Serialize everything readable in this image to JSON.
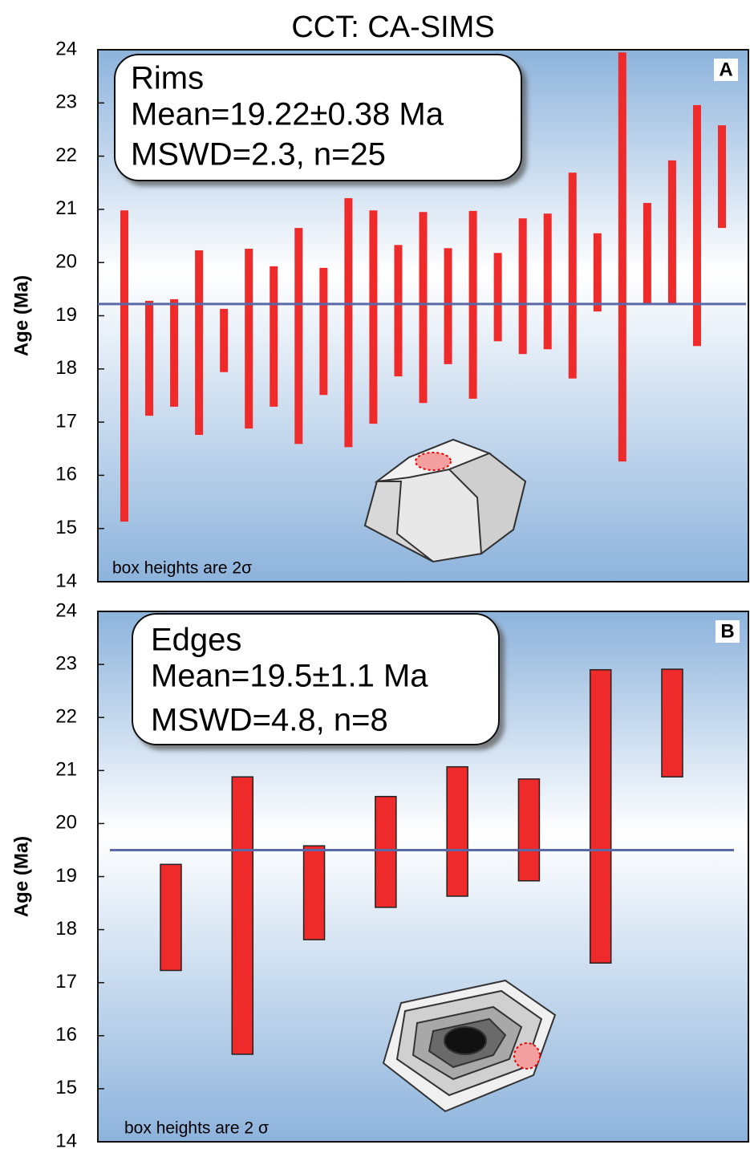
{
  "title": "CCT: CA-SIMS",
  "chart_data": [
    {
      "type": "range",
      "panel_label": "A",
      "ylabel": "Age (Ma)",
      "box_lines": [
        "Rims",
        "Mean=19.22±0.38 Ma",
        "MSWD=2.3, n=25"
      ],
      "note": "box heights are 2σ",
      "low": [
        15.13,
        17.12,
        17.29,
        16.76,
        17.94,
        16.88,
        17.29,
        16.59,
        17.51,
        16.53,
        16.97,
        17.86,
        17.36,
        18.09,
        17.44,
        18.52,
        18.28,
        18.37,
        17.82,
        19.08,
        16.26,
        19.23,
        19.23,
        18.43,
        20.65
      ],
      "high": [
        20.98,
        19.28,
        19.31,
        20.23,
        19.13,
        20.26,
        19.93,
        20.65,
        19.9,
        21.21,
        20.98,
        20.33,
        20.95,
        20.27,
        20.97,
        20.18,
        20.83,
        20.92,
        21.69,
        20.55,
        23.95,
        21.12,
        21.92,
        22.96,
        22.58
      ],
      "mean": 19.22,
      "color": "#ee2a2a",
      "mean_color": "#5a6aa8",
      "ylim": [
        14,
        24
      ],
      "yticks": [
        14,
        15,
        16,
        17,
        18,
        19,
        20,
        21,
        22,
        23,
        24
      ]
    },
    {
      "type": "range",
      "panel_label": "B",
      "ylabel": "Age (Ma)",
      "box_lines": [
        "Edges",
        "Mean=19.5±1.1 Ma",
        "MSWD=4.8, n=8"
      ],
      "note": "box heights are 2 σ",
      "low": [
        17.23,
        15.65,
        17.81,
        18.42,
        18.63,
        18.92,
        17.37,
        20.88
      ],
      "high": [
        19.23,
        20.88,
        19.58,
        20.51,
        21.07,
        20.84,
        22.9,
        22.91
      ],
      "mean": 19.5,
      "color": "#ee2a2a",
      "mean_color": "#5a6aa8",
      "ylim": [
        14,
        24
      ],
      "yticks": [
        14,
        15,
        16,
        17,
        18,
        19,
        20,
        21,
        22,
        23,
        24
      ]
    }
  ]
}
